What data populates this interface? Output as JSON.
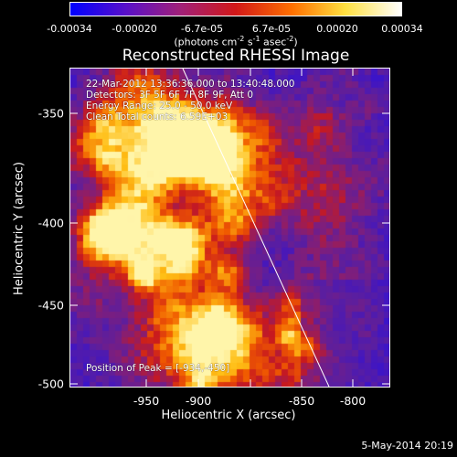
{
  "colorbar": {
    "tick_labels": [
      "-0.00034",
      "-0.00020",
      "-6.7e-05",
      "6.7e-05",
      "0.00020",
      "0.00034"
    ],
    "units_base": "(photons cm",
    "units_exp1": "-2",
    "units_mid": " s",
    "units_exp2": "-1",
    "units_mid2": " asec",
    "units_exp3": "-2",
    "units_end": ")",
    "colors": [
      "#0000ff",
      "#5a10c8",
      "#a0207a",
      "#d21818",
      "#ff7000",
      "#ffe040",
      "#ffffff"
    ]
  },
  "plot": {
    "title": "Reconstructed RHESSI Image",
    "info_lines": [
      "22-Mar-2012 13:36:36.000 to 13:40:48.000",
      "Detectors: 3F 5F 6F 7F 8F 9F, Att 0",
      "Energy Range: 25.0 - 50.0 keV",
      "Clean     Total counts: 6.59E+03"
    ],
    "peak_label": "Position of Peak = [-934,-450]",
    "x_axis": {
      "label": "Heliocentric X (arcsec)",
      "ticks": [
        "-950",
        "-900",
        "-850",
        "-800"
      ]
    },
    "y_axis": {
      "label": "Heliocentric Y (arcsec)",
      "ticks": [
        "-350",
        "-400",
        "-450",
        "-500"
      ]
    }
  },
  "footer": {
    "date": "5-May-2014 20:19"
  }
}
